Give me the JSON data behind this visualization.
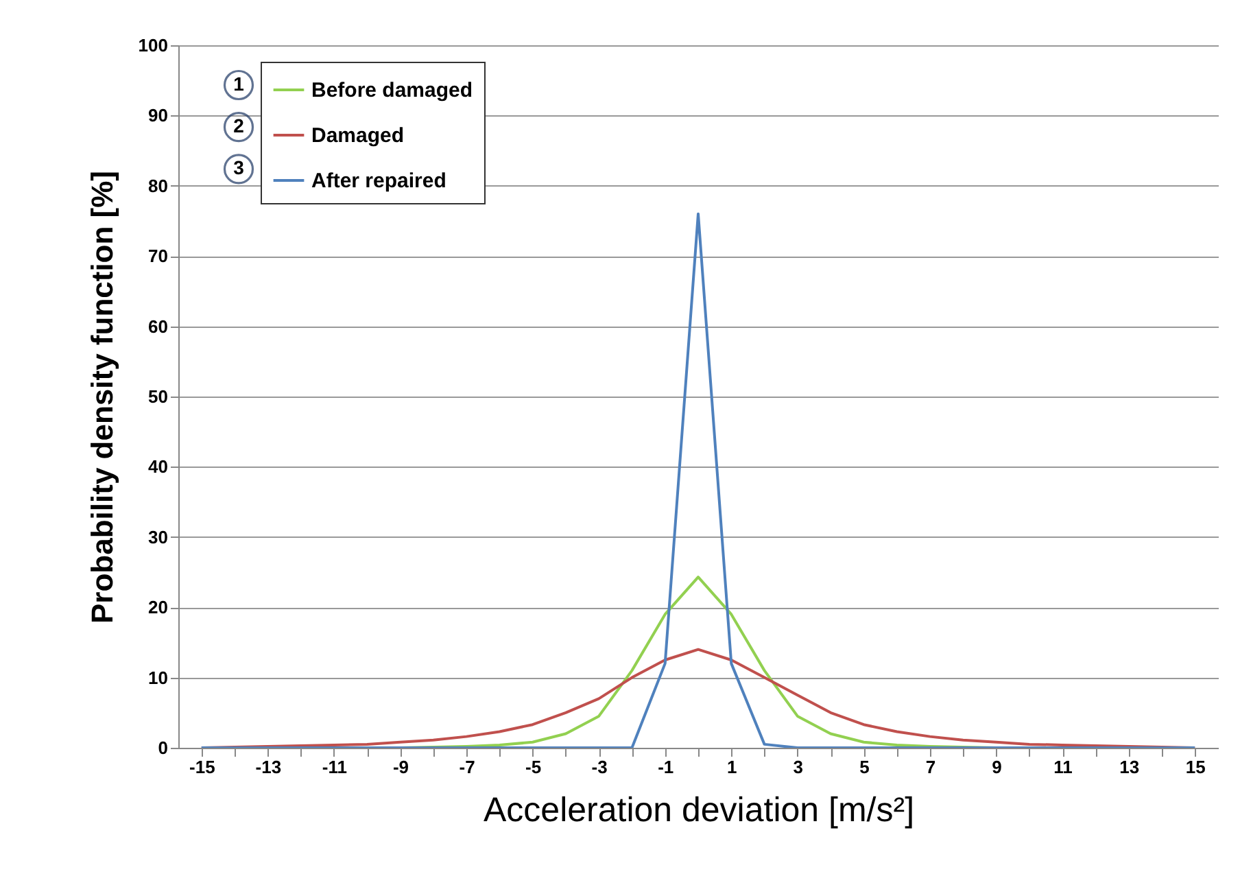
{
  "chart_data": {
    "type": "line",
    "xlabel": "Acceleration deviation [m/s²]",
    "ylabel": "Probability density function  [%]",
    "x": [
      -15,
      -14,
      -13,
      -12,
      -11,
      -10,
      -9,
      -8,
      -7,
      -6,
      -5,
      -4,
      -3,
      -2,
      -1,
      0,
      1,
      2,
      3,
      4,
      5,
      6,
      7,
      8,
      9,
      10,
      11,
      12,
      13,
      14,
      15
    ],
    "series": [
      {
        "name": "Before damaged",
        "color": "#92d050",
        "values": [
          null,
          null,
          null,
          null,
          null,
          0,
          0,
          0.1,
          0.2,
          0.4,
          0.8,
          2,
          4.5,
          11,
          19,
          24.3,
          19,
          11,
          4.5,
          2,
          0.8,
          0.4,
          0.2,
          0.1,
          0,
          0,
          null,
          null,
          null,
          null,
          null
        ]
      },
      {
        "name": "Damaged",
        "color": "#c0504d",
        "values": [
          0,
          0.1,
          0.2,
          0.3,
          0.4,
          0.5,
          0.8,
          1.1,
          1.6,
          2.3,
          3.3,
          5,
          7,
          10,
          12.5,
          14,
          12.5,
          10,
          7.5,
          5,
          3.3,
          2.3,
          1.6,
          1.1,
          0.8,
          0.5,
          0.4,
          0.3,
          0.2,
          0.1,
          0
        ]
      },
      {
        "name": "After repaired",
        "color": "#4f81bd",
        "values": [
          0,
          0,
          0,
          0,
          0,
          0,
          0,
          0,
          0,
          0,
          0,
          0,
          0,
          0,
          12,
          76,
          12,
          0.5,
          0,
          0,
          0,
          0,
          0,
          0,
          0,
          0,
          0,
          0,
          0,
          0,
          0
        ]
      }
    ],
    "annotations": [
      "1",
      "2",
      "3"
    ],
    "xlim": [
      -15.7,
      15.7
    ],
    "xticks": [
      -15,
      {
        "value": -14,
        "label": null
      },
      -13,
      {
        "value": -12,
        "label": null
      },
      -11,
      {
        "value": -10,
        "label": null
      },
      -9,
      {
        "value": -8,
        "label": null
      },
      -7,
      {
        "value": -6,
        "label": null
      },
      -5,
      {
        "value": -4,
        "label": null
      },
      -3,
      {
        "value": -2,
        "label": null
      },
      -1,
      {
        "value": 0,
        "label": null
      },
      1,
      {
        "value": 2,
        "label": null
      },
      3,
      {
        "value": 4,
        "label": null
      },
      5,
      {
        "value": 6,
        "label": null
      },
      7,
      {
        "value": 8,
        "label": null
      },
      9,
      {
        "value": 10,
        "label": null
      },
      11,
      {
        "value": 12,
        "label": null
      },
      13,
      {
        "value": 14,
        "label": null
      },
      15
    ],
    "ylim": [
      0,
      100
    ],
    "yticks": [
      0,
      10,
      20,
      30,
      40,
      50,
      60,
      70,
      80,
      90,
      100
    ],
    "grid": "y",
    "legend": "top left",
    "marker": "none",
    "line_style": "solid"
  }
}
